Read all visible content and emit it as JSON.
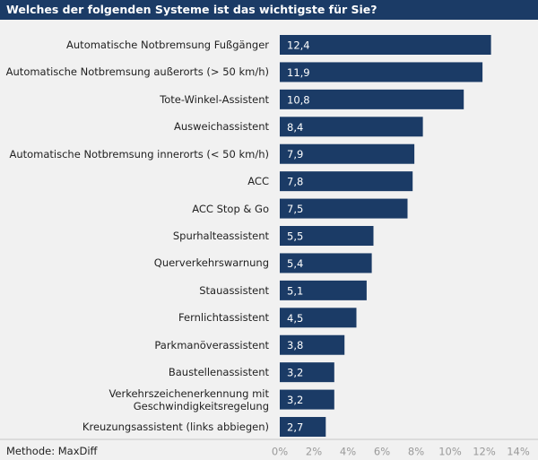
{
  "chart_data": {
    "type": "bar",
    "orientation": "horizontal",
    "title": "Welches der folgenden Systeme ist das wichtigste für Sie?",
    "footnote": "Methode: MaxDiff",
    "categories": [
      "Automatische Notbremsung Fußgänger",
      "Automatische Notbremsung außerorts (> 50 km/h)",
      "Tote-Winkel-Assistent",
      "Ausweichassistent",
      "Automatische Notbremsung innerorts (< 50 km/h)",
      "ACC",
      "ACC Stop & Go",
      "Spurhalteassistent",
      "Querverkehrswarnung",
      "Stauassistent",
      "Fernlichtassistent",
      "Parkmanöverassistent",
      "Baustellenassistent",
      "Verkehrszeichenerkennung mit\nGeschwindigkeitsregelung",
      "Kreuzungsassistent (links abbiegen)"
    ],
    "values": [
      12.4,
      11.9,
      10.8,
      8.4,
      7.9,
      7.8,
      7.5,
      5.5,
      5.4,
      5.1,
      4.5,
      3.8,
      3.2,
      3.2,
      2.7
    ],
    "value_labels": [
      "12,4",
      "11,9",
      "10,8",
      "8,4",
      "7,9",
      "7,8",
      "7,5",
      "5,5",
      "5,4",
      "5,1",
      "4,5",
      "3,8",
      "3,2",
      "3,2",
      "2,7"
    ],
    "color": "#1b3b66",
    "xlim": [
      0,
      14
    ],
    "xticks": [
      {
        "value": 0,
        "label": "0%"
      },
      {
        "value": 2,
        "label": "2%"
      },
      {
        "value": 4,
        "label": "4%"
      },
      {
        "value": 6,
        "label": "6%"
      },
      {
        "value": 8,
        "label": "8%"
      },
      {
        "value": 10,
        "label": "10%"
      },
      {
        "value": 12,
        "label": "12%"
      },
      {
        "value": 14,
        "label": "14%"
      }
    ],
    "grid": false
  }
}
